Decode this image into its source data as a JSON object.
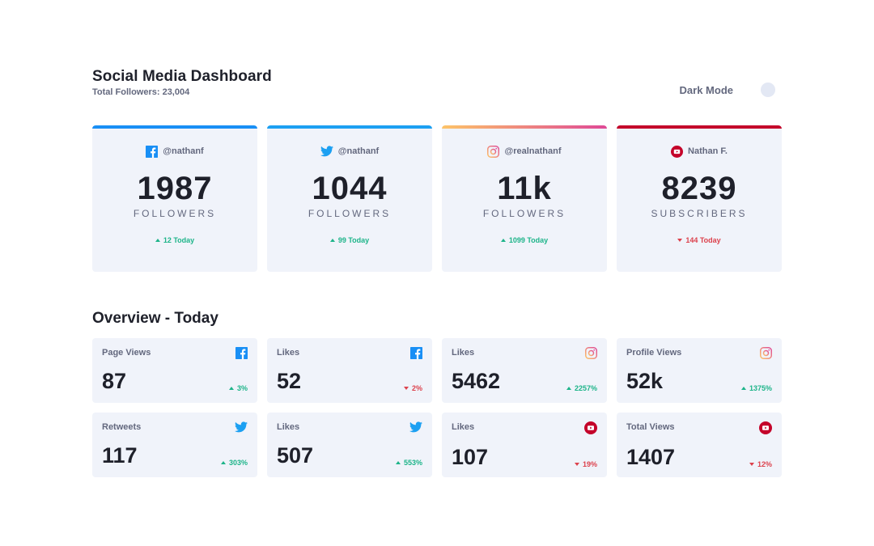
{
  "header": {
    "title": "Social Media Dashboard",
    "total_followers": "Total Followers: 23,004",
    "dark_mode_label": "Dark Mode",
    "dark_mode_on": false
  },
  "colors": {
    "facebook": "#198ff5",
    "twitter": "#1ca0f2",
    "instagram_gradient": [
      "#fdc468",
      "#df4996"
    ],
    "youtube": "#c4032a",
    "up": "#1db489",
    "down": "#dc414c",
    "card_bg": "#f0f3fa"
  },
  "cards": [
    {
      "platform": "facebook",
      "icon": "facebook-icon",
      "handle": "@nathanf",
      "count": "1987",
      "unit": "FOLLOWERS",
      "today": "12 Today",
      "trend": "up"
    },
    {
      "platform": "twitter",
      "icon": "twitter-icon",
      "handle": "@nathanf",
      "count": "1044",
      "unit": "FOLLOWERS",
      "today": "99 Today",
      "trend": "up"
    },
    {
      "platform": "instagram",
      "icon": "instagram-icon",
      "handle": "@realnathanf",
      "count": "11k",
      "unit": "FOLLOWERS",
      "today": "1099 Today",
      "trend": "up"
    },
    {
      "platform": "youtube",
      "icon": "youtube-icon",
      "handle": "Nathan F.",
      "count": "8239",
      "unit": "SUBSCRIBERS",
      "today": "144 Today",
      "trend": "down"
    }
  ],
  "overview": {
    "title": "Overview - Today",
    "items": [
      {
        "label": "Page Views",
        "platform": "facebook",
        "value": "87",
        "pct": "3%",
        "trend": "up"
      },
      {
        "label": "Likes",
        "platform": "facebook",
        "value": "52",
        "pct": "2%",
        "trend": "down"
      },
      {
        "label": "Likes",
        "platform": "instagram",
        "value": "5462",
        "pct": "2257%",
        "trend": "up"
      },
      {
        "label": "Profile Views",
        "platform": "instagram",
        "value": "52k",
        "pct": "1375%",
        "trend": "up"
      },
      {
        "label": "Retweets",
        "platform": "twitter",
        "value": "117",
        "pct": "303%",
        "trend": "up"
      },
      {
        "label": "Likes",
        "platform": "twitter",
        "value": "507",
        "pct": "553%",
        "trend": "up"
      },
      {
        "label": "Likes",
        "platform": "youtube",
        "value": "107",
        "pct": "19%",
        "trend": "down"
      },
      {
        "label": "Total Views",
        "platform": "youtube",
        "value": "1407",
        "pct": "12%",
        "trend": "down"
      }
    ]
  }
}
